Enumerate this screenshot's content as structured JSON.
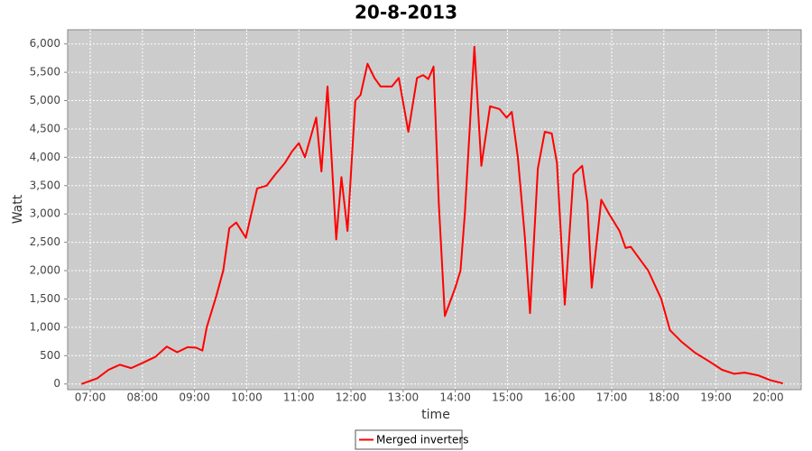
{
  "chart_data": {
    "type": "line",
    "title": "20-8-2013",
    "xlabel": "time",
    "ylabel": "Watt",
    "x": [
      "06:50",
      "07:08",
      "07:21",
      "07:34",
      "07:47",
      "08:00",
      "08:15",
      "08:28",
      "08:40",
      "08:52",
      "09:02",
      "09:09",
      "09:14",
      "09:25",
      "09:33",
      "09:40",
      "09:48",
      "09:59",
      "10:12",
      "10:23",
      "10:33",
      "10:44",
      "10:52",
      "11:00",
      "11:07",
      "11:20",
      "11:26",
      "11:33",
      "11:43",
      "11:49",
      "11:56",
      "12:05",
      "12:11",
      "12:19",
      "12:27",
      "12:34",
      "12:47",
      "12:55",
      "13:06",
      "13:16",
      "13:23",
      "13:29",
      "13:35",
      "13:41",
      "13:48",
      "13:54",
      "14:00",
      "14:06",
      "14:11",
      "14:22",
      "14:30",
      "14:40",
      "14:51",
      "14:59",
      "15:05",
      "15:12",
      "15:20",
      "15:26",
      "15:35",
      "15:43",
      "15:51",
      "15:57",
      "16:06",
      "16:16",
      "16:26",
      "16:32",
      "16:37",
      "16:48",
      "16:57",
      "17:09",
      "17:16",
      "17:22",
      "17:30",
      "17:42",
      "17:57",
      "18:07",
      "18:20",
      "18:36",
      "18:52",
      "19:07",
      "19:21",
      "19:33",
      "19:49",
      "20:02",
      "20:17"
    ],
    "series": [
      {
        "name": "Merged inverters",
        "color": "#ff0000",
        "values": [
          0,
          100,
          250,
          340,
          280,
          370,
          480,
          660,
          560,
          650,
          640,
          590,
          1000,
          1550,
          2000,
          2750,
          2850,
          2580,
          3450,
          3500,
          3700,
          3900,
          4100,
          4250,
          4000,
          4700,
          3750,
          5250,
          2550,
          3650,
          2700,
          5000,
          5100,
          5650,
          5400,
          5250,
          5250,
          5400,
          4450,
          5400,
          5450,
          5380,
          5600,
          3200,
          1200,
          1450,
          1700,
          2000,
          3000,
          5950,
          3850,
          4900,
          4850,
          4700,
          4800,
          4000,
          2600,
          1250,
          3800,
          4450,
          4420,
          3900,
          1400,
          3700,
          3850,
          3200,
          1700,
          3250,
          3000,
          2700,
          2400,
          2420,
          2250,
          2000,
          1500,
          950,
          750,
          550,
          400,
          250,
          180,
          200,
          150,
          70,
          10
        ]
      }
    ],
    "xlim": [
      "06:34",
      "20:38"
    ],
    "xticks": [
      "07:00",
      "08:00",
      "09:00",
      "10:00",
      "11:00",
      "12:00",
      "13:00",
      "14:00",
      "15:00",
      "16:00",
      "17:00",
      "18:00",
      "19:00",
      "20:00"
    ],
    "ylim": [
      -100,
      6250
    ],
    "yticks": [
      0,
      500,
      {
        "value": 1000,
        "label": "1,000"
      },
      {
        "value": 1500,
        "label": "1,500"
      },
      {
        "value": 2000,
        "label": "2,000"
      },
      {
        "value": 2500,
        "label": "2,500"
      },
      {
        "value": 3000,
        "label": "3,000"
      },
      {
        "value": 3500,
        "label": "3,500"
      },
      {
        "value": 4000,
        "label": "4,000"
      },
      {
        "value": 4500,
        "label": "4,500"
      },
      {
        "value": 5000,
        "label": "5,000"
      },
      {
        "value": 5500,
        "label": "5,500"
      },
      {
        "value": 6000,
        "label": "6,000"
      }
    ],
    "grid": true,
    "legend": "bottom"
  }
}
